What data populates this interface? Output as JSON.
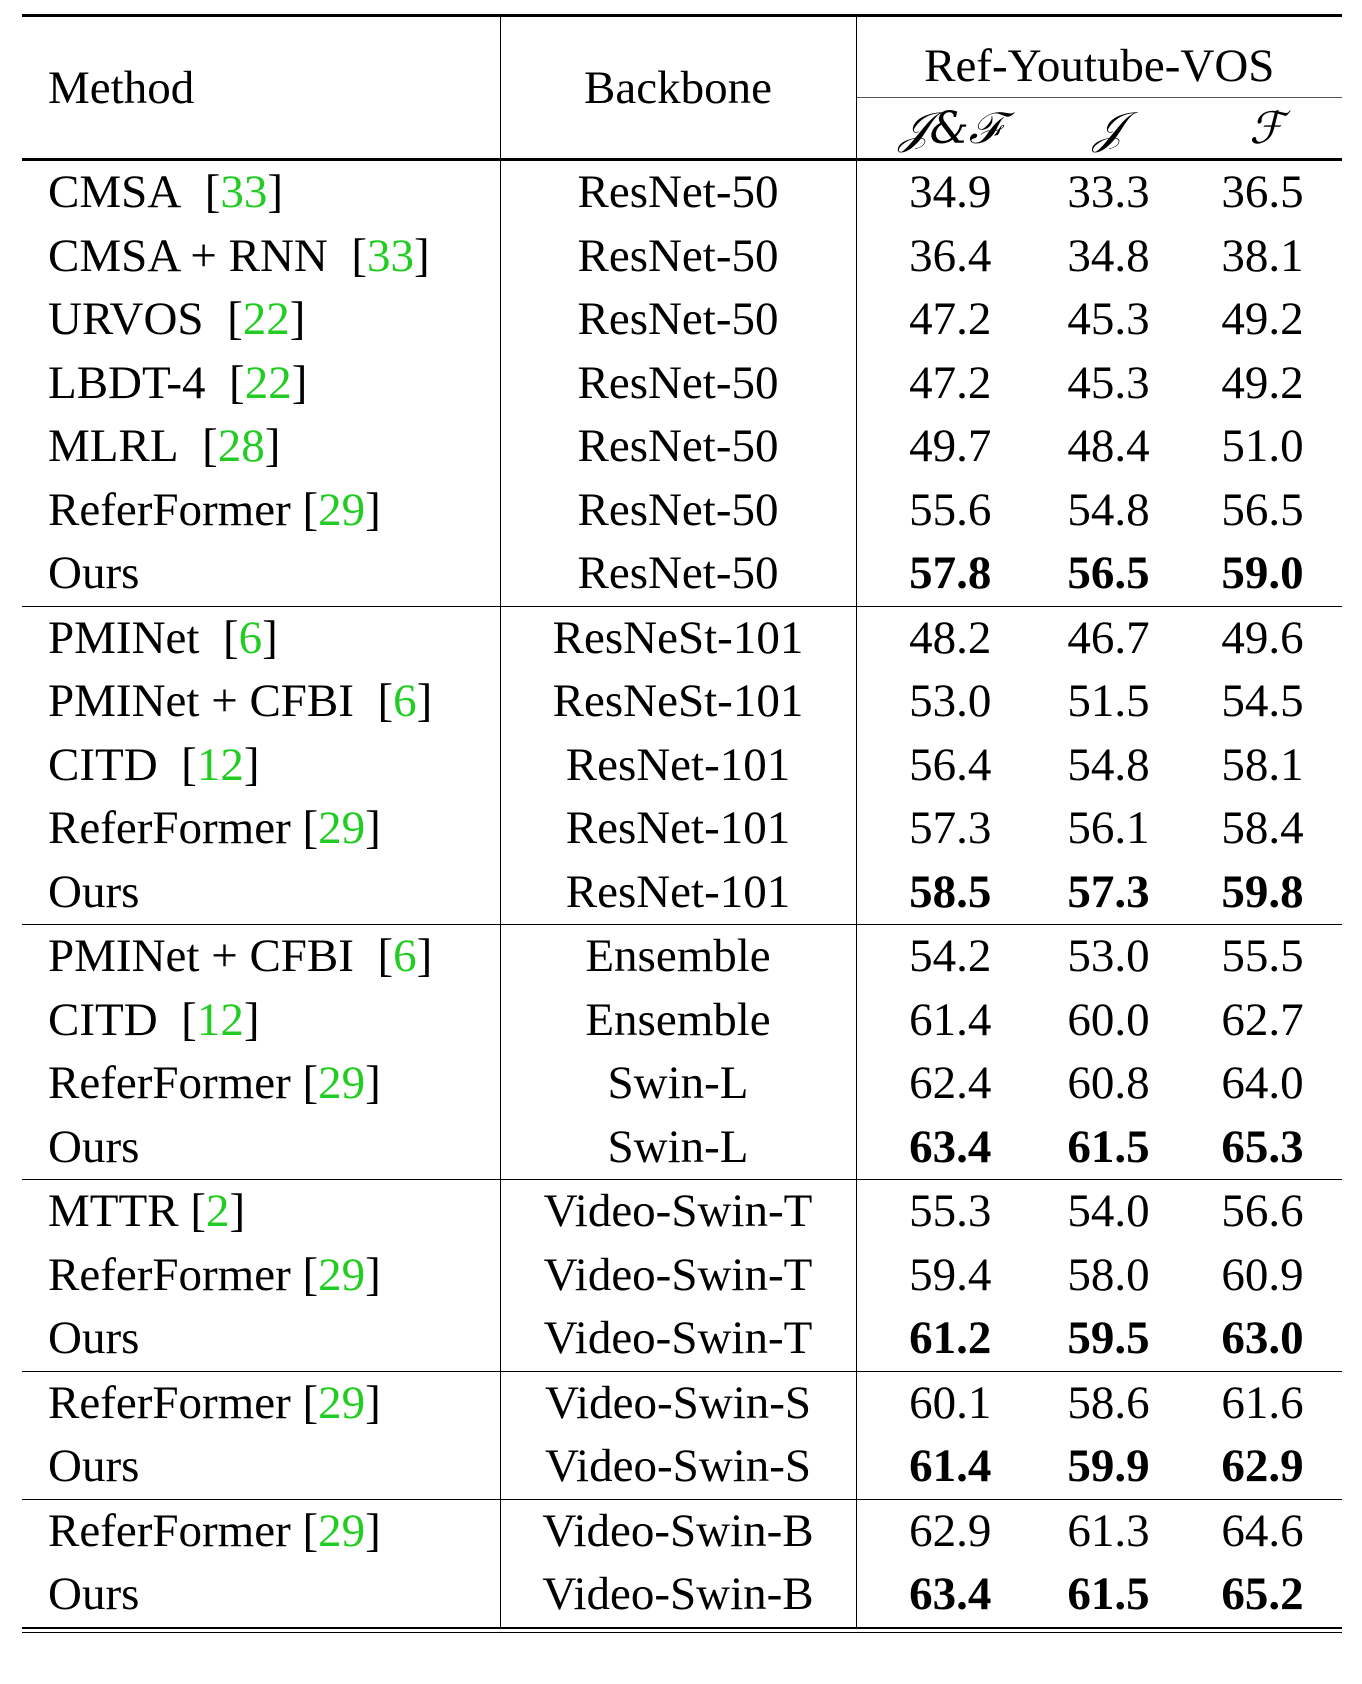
{
  "header": {
    "method": "Method",
    "backbone": "Backbone",
    "dataset": "Ref-Youtube-VOS",
    "metric_jf": "𝒥&ℱ",
    "metric_j": "𝒥",
    "metric_f": "ℱ"
  },
  "groups": [
    {
      "rows": [
        {
          "method": "CMSA",
          "cite": "33",
          "backbone": "ResNet-50",
          "jf": "34.9",
          "j": "33.3",
          "f": "36.5",
          "bold": false
        },
        {
          "method": "CMSA + RNN",
          "cite": "33",
          "backbone": "ResNet-50",
          "jf": "36.4",
          "j": "34.8",
          "f": "38.1",
          "bold": false
        },
        {
          "method": "URVOS",
          "cite": "22",
          "backbone": "ResNet-50",
          "jf": "47.2",
          "j": "45.3",
          "f": "49.2",
          "bold": false
        },
        {
          "method": "LBDT-4",
          "cite": "22",
          "backbone": "ResNet-50",
          "jf": "47.2",
          "j": "45.3",
          "f": "49.2",
          "bold": false
        },
        {
          "method": "MLRL",
          "cite": "28",
          "backbone": "ResNet-50",
          "jf": "49.7",
          "j": "48.4",
          "f": "51.0",
          "bold": false
        },
        {
          "method": "ReferFormer",
          "cite": "29",
          "backbone": "ResNet-50",
          "jf": "55.6",
          "j": "54.8",
          "f": "56.5",
          "bold": false
        },
        {
          "method": "Ours",
          "cite": "",
          "backbone": "ResNet-50",
          "jf": "57.8",
          "j": "56.5",
          "f": "59.0",
          "bold": true
        }
      ]
    },
    {
      "rows": [
        {
          "method": "PMINet",
          "cite": "6",
          "backbone": "ResNeSt-101",
          "jf": "48.2",
          "j": "46.7",
          "f": "49.6",
          "bold": false
        },
        {
          "method": "PMINet + CFBI",
          "cite": "6",
          "backbone": "ResNeSt-101",
          "jf": "53.0",
          "j": "51.5",
          "f": "54.5",
          "bold": false
        },
        {
          "method": "CITD",
          "cite": "12",
          "backbone": "ResNet-101",
          "jf": "56.4",
          "j": "54.8",
          "f": "58.1",
          "bold": false
        },
        {
          "method": "ReferFormer",
          "cite": "29",
          "backbone": "ResNet-101",
          "jf": "57.3",
          "j": "56.1",
          "f": "58.4",
          "bold": false
        },
        {
          "method": "Ours",
          "cite": "",
          "backbone": "ResNet-101",
          "jf": "58.5",
          "j": "57.3",
          "f": "59.8",
          "bold": true
        }
      ]
    },
    {
      "rows": [
        {
          "method": "PMINet + CFBI",
          "cite": "6",
          "backbone": "Ensemble",
          "jf": "54.2",
          "j": "53.0",
          "f": "55.5",
          "bold": false
        },
        {
          "method": "CITD",
          "cite": "12",
          "backbone": "Ensemble",
          "jf": "61.4",
          "j": "60.0",
          "f": "62.7",
          "bold": false
        },
        {
          "method": "ReferFormer",
          "cite": "29",
          "backbone": "Swin-L",
          "jf": "62.4",
          "j": "60.8",
          "f": "64.0",
          "bold": false
        },
        {
          "method": "Ours",
          "cite": "",
          "backbone": "Swin-L",
          "jf": "63.4",
          "j": "61.5",
          "f": "65.3",
          "bold": true
        }
      ]
    },
    {
      "rows": [
        {
          "method": "MTTR",
          "cite": "2",
          "backbone": "Video-Swin-T",
          "jf": "55.3",
          "j": "54.0",
          "f": "56.6",
          "bold": false
        },
        {
          "method": "ReferFormer",
          "cite": "29",
          "backbone": "Video-Swin-T",
          "jf": "59.4",
          "j": "58.0",
          "f": "60.9",
          "bold": false
        },
        {
          "method": "Ours",
          "cite": "",
          "backbone": "Video-Swin-T",
          "jf": "61.2",
          "j": "59.5",
          "f": "63.0",
          "bold": true
        }
      ]
    },
    {
      "rows": [
        {
          "method": "ReferFormer",
          "cite": "29",
          "backbone": "Video-Swin-S",
          "jf": "60.1",
          "j": "58.6",
          "f": "61.6",
          "bold": false
        },
        {
          "method": "Ours",
          "cite": "",
          "backbone": "Video-Swin-S",
          "jf": "61.4",
          "j": "59.9",
          "f": "62.9",
          "bold": true
        }
      ]
    },
    {
      "rows": [
        {
          "method": "ReferFormer",
          "cite": "29",
          "backbone": "Video-Swin-B",
          "jf": "62.9",
          "j": "61.3",
          "f": "64.6",
          "bold": false
        },
        {
          "method": "Ours",
          "cite": "",
          "backbone": "Video-Swin-B",
          "jf": "63.4",
          "j": "61.5",
          "f": "65.2",
          "bold": true
        }
      ]
    }
  ],
  "colors": {
    "citation": "#22cc22",
    "text": "#000000"
  }
}
